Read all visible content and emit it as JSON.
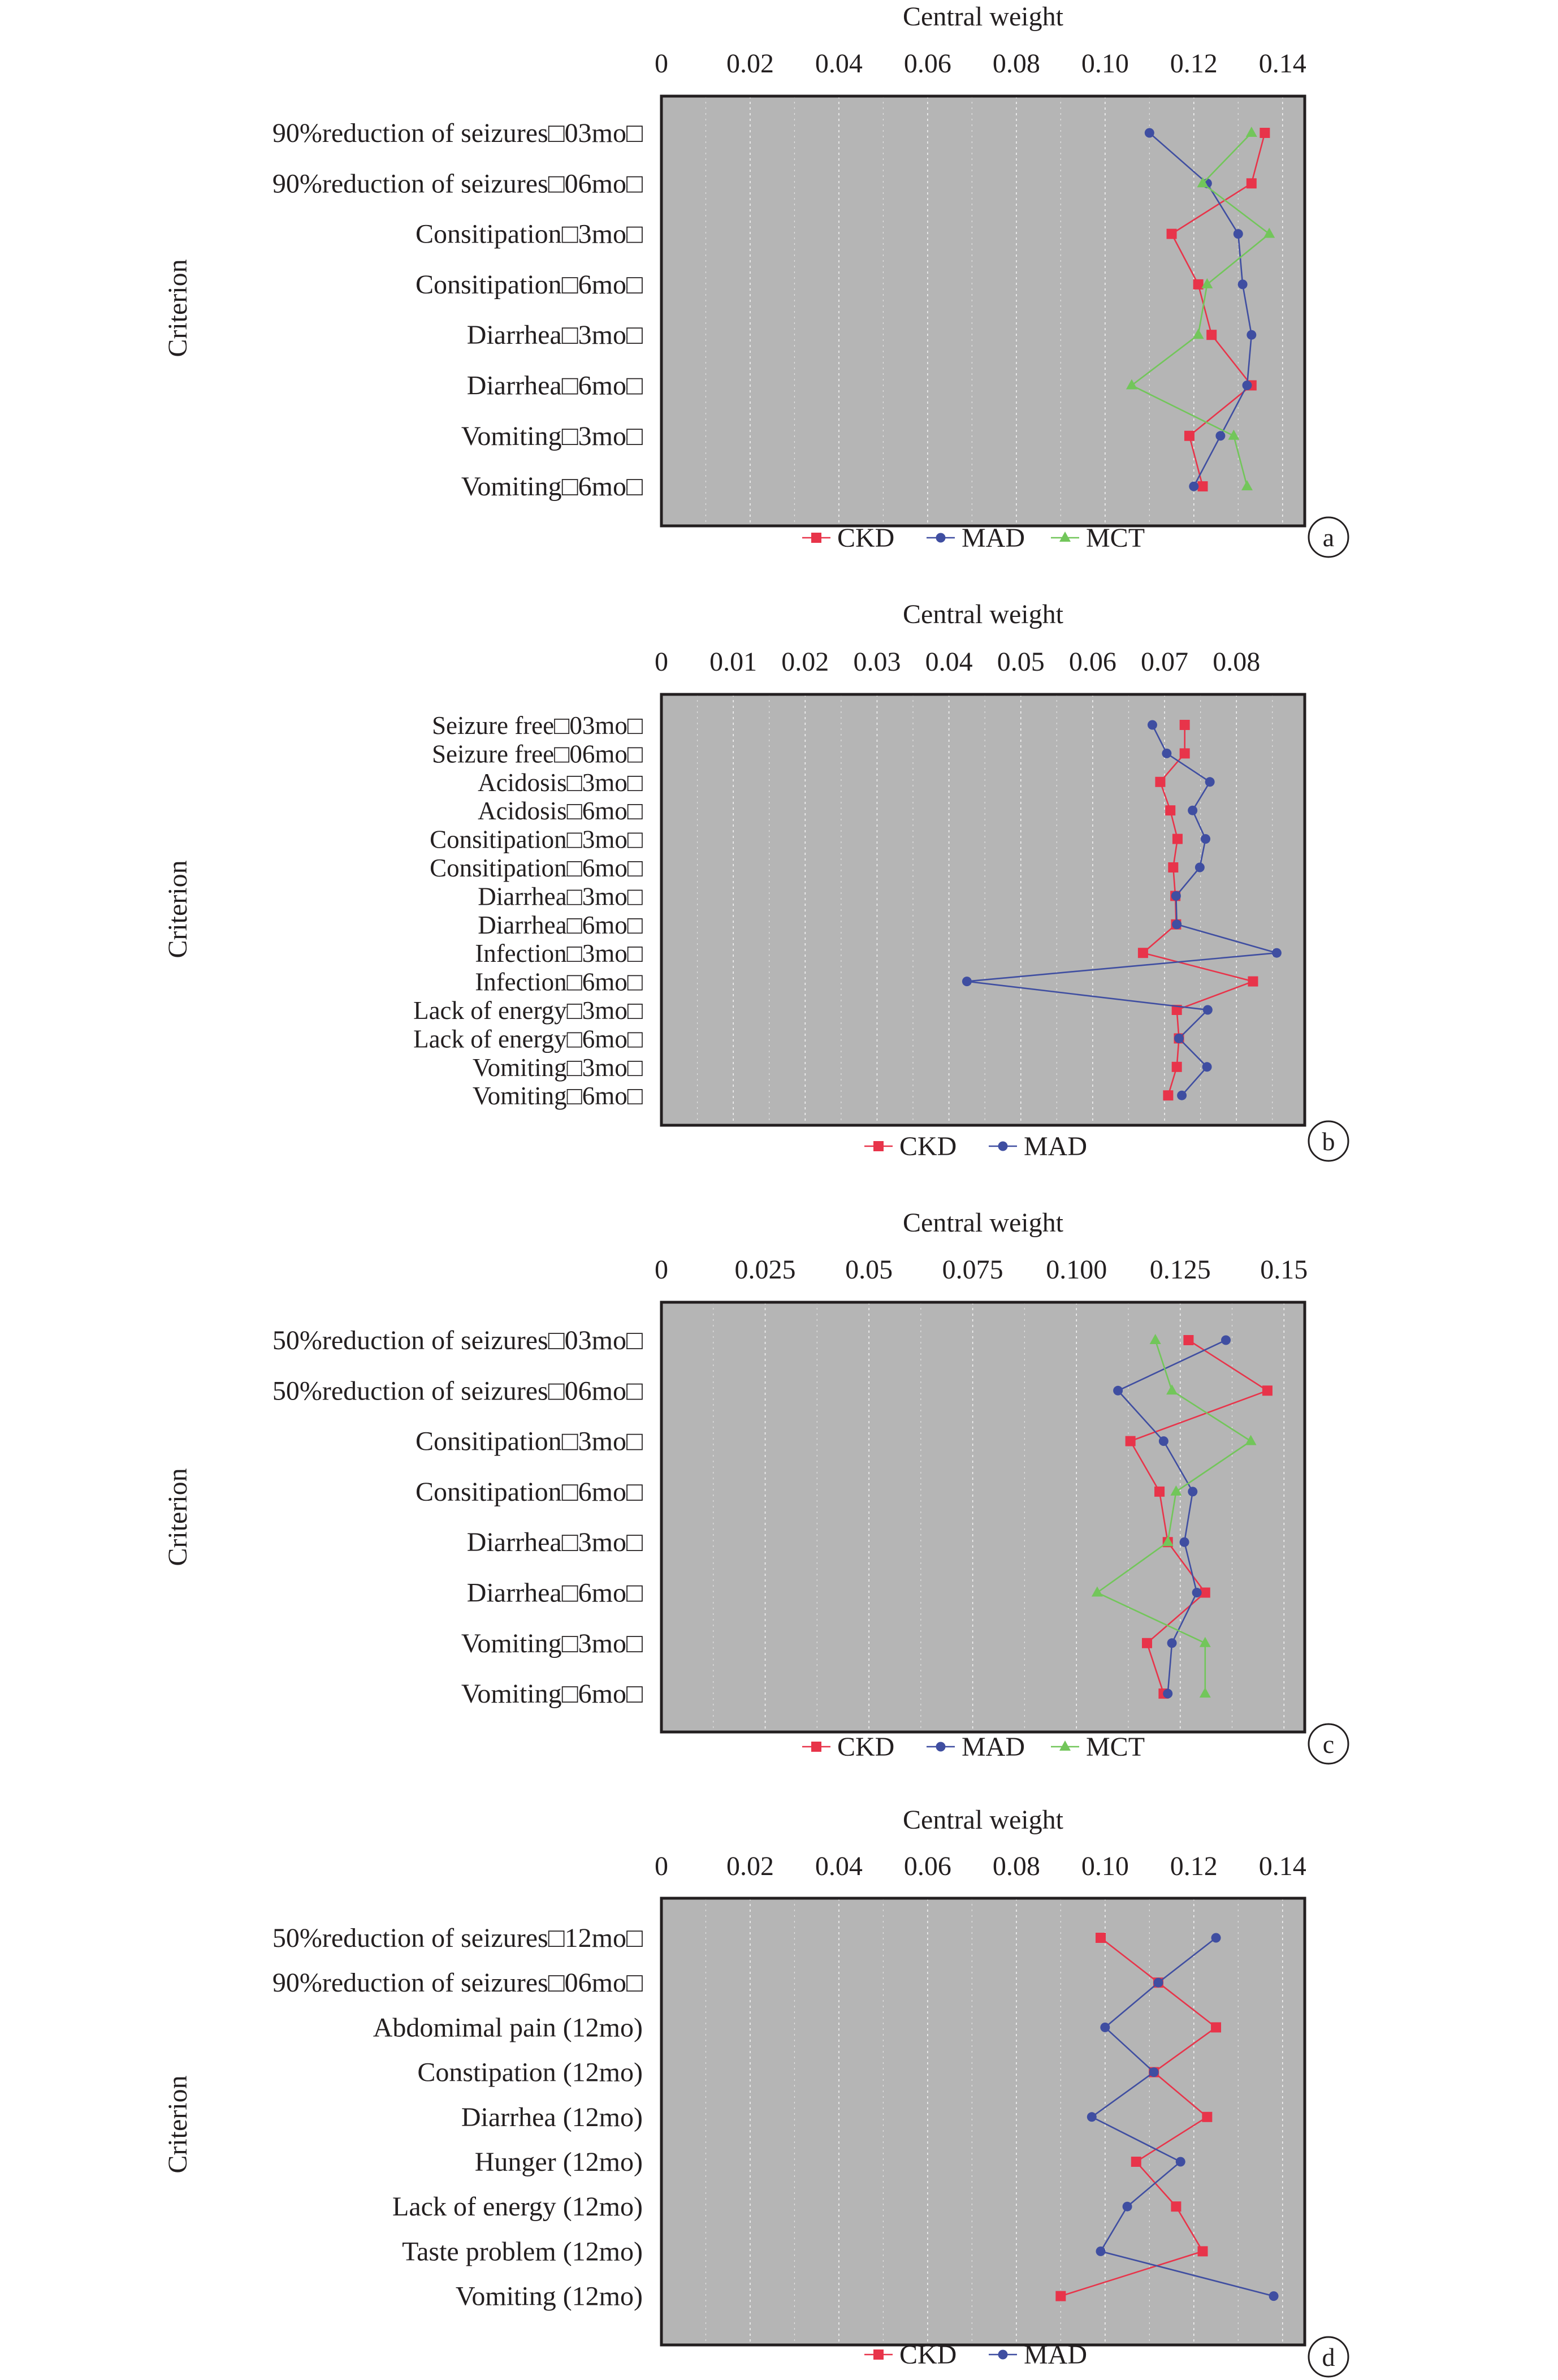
{
  "colors": {
    "plot_background": "#b5b5b5",
    "frame": "#231f20",
    "CKD": "#e8344a",
    "MAD": "#3f4ea1",
    "MCT": "#72c65a"
  },
  "marker_shapes": {
    "CKD": "square",
    "MAD": "circle",
    "MCT": "triangle"
  },
  "chart_data": [
    {
      "panel": "a",
      "type": "line",
      "orientation": "horizontal",
      "xlabel": "Central weight",
      "ylabel": "Criterion",
      "xlim": [
        0,
        0.145
      ],
      "xticks": [
        "0",
        "0.02",
        "0.04",
        "0.06",
        "0.08",
        "0.10",
        "0.12",
        "0.14"
      ],
      "xtick_values": [
        0,
        0.02,
        0.04,
        0.06,
        0.08,
        0.1,
        0.12,
        0.14
      ],
      "grid": "vertical dotted",
      "legend_position": "bottom-center",
      "categories": [
        "90%reduction of seizures□03mo□",
        "90%reduction of seizures□06mo□",
        "Consitipation□3mo□",
        "Consitipation□6mo□",
        "Diarrhea□3mo□",
        "Diarrhea□6mo□",
        "Vomiting□3mo□",
        "Vomiting□6mo□"
      ],
      "series": [
        {
          "name": "CKD",
          "values": [
            0.136,
            0.133,
            0.115,
            0.121,
            0.124,
            0.133,
            0.119,
            0.122
          ]
        },
        {
          "name": "MAD",
          "values": [
            0.11,
            0.123,
            0.13,
            0.131,
            0.133,
            0.132,
            0.126,
            0.12
          ]
        },
        {
          "name": "MCT",
          "values": [
            0.133,
            0.122,
            0.137,
            0.123,
            0.121,
            0.106,
            0.129,
            0.132
          ]
        }
      ]
    },
    {
      "panel": "b",
      "type": "line",
      "orientation": "horizontal",
      "xlabel": "Central weight",
      "ylabel": "Criterion",
      "xlim": [
        0,
        0.0895
      ],
      "xticks": [
        "0",
        "0.01",
        "0.02",
        "0.03",
        "0.04",
        "0.05",
        "0.06",
        "0.07",
        "0.08"
      ],
      "xtick_values": [
        0,
        0.01,
        0.02,
        0.03,
        0.04,
        0.05,
        0.06,
        0.07,
        0.08
      ],
      "grid": "vertical dotted",
      "legend_position": "bottom-center",
      "categories": [
        "Seizure free□03mo□",
        "Seizure free□06mo□",
        "Acidosis□3mo□",
        "Acidosis□6mo□",
        "Consitipation□3mo□",
        "Consitipation□6mo□",
        "Diarrhea□3mo□",
        "Diarrhea□6mo□",
        "Infection□3mo□",
        "Infection□6mo□",
        "Lack of energy□3mo□",
        "Lack of energy□6mo□",
        "Vomiting□3mo□",
        "Vomiting□6mo□"
      ],
      "series": [
        {
          "name": "CKD",
          "values": [
            0.0728,
            0.0728,
            0.0694,
            0.0708,
            0.0718,
            0.0712,
            0.0715,
            0.0716,
            0.067,
            0.0823,
            0.0717,
            0.072,
            0.0717,
            0.0705
          ]
        },
        {
          "name": "MAD",
          "values": [
            0.0683,
            0.0703,
            0.0763,
            0.0739,
            0.0757,
            0.0749,
            0.0716,
            0.0717,
            0.0856,
            0.0425,
            0.076,
            0.072,
            0.0759,
            0.0724
          ]
        }
      ]
    },
    {
      "panel": "c",
      "type": "line",
      "orientation": "horizontal",
      "xlabel": "Central weight",
      "ylabel": "Criterion",
      "xlim": [
        0,
        0.155
      ],
      "xticks": [
        "0",
        "0.025",
        "0.05",
        "0.075",
        "0.100",
        "0.125",
        "0.15"
      ],
      "xtick_values": [
        0,
        0.025,
        0.05,
        0.075,
        0.1,
        0.125,
        0.15
      ],
      "grid": "vertical dotted",
      "legend_position": "bottom-center",
      "categories": [
        "50%reduction of seizures□03mo□",
        "50%reduction of seizures□06mo□",
        "Consitipation□3mo□",
        "Consitipation□6mo□",
        "Diarrhea□3mo□",
        "Diarrhea□6mo□",
        "Vomiting□3mo□",
        "Vomiting□6mo□"
      ],
      "series": [
        {
          "name": "CKD",
          "values": [
            0.127,
            0.146,
            0.113,
            0.12,
            0.122,
            0.131,
            0.117,
            0.121
          ]
        },
        {
          "name": "MAD",
          "values": [
            0.136,
            0.11,
            0.121,
            0.128,
            0.126,
            0.129,
            0.123,
            0.122
          ]
        },
        {
          "name": "MCT",
          "values": [
            0.119,
            0.123,
            0.142,
            0.124,
            0.122,
            0.105,
            0.131,
            0.131
          ]
        }
      ]
    },
    {
      "panel": "d",
      "type": "line",
      "orientation": "horizontal",
      "xlabel": "Central weight",
      "ylabel": "Criterion",
      "xlim": [
        0,
        0.145
      ],
      "xticks": [
        "0",
        "0.02",
        "0.04",
        "0.06",
        "0.08",
        "0.10",
        "0.12",
        "0.14"
      ],
      "xtick_values": [
        0,
        0.02,
        0.04,
        0.06,
        0.08,
        0.1,
        0.12,
        0.14
      ],
      "grid": "vertical dotted",
      "legend_position": "bottom-center",
      "categories": [
        "50%reduction of seizures□12mo□",
        "90%reduction of seizures□06mo□",
        "Abdomimal pain (12mo)",
        "Constipation (12mo)",
        "Diarrhea (12mo)",
        "Hunger (12mo)",
        "Lack of energy (12mo)",
        "Taste problem (12mo)",
        "Vomiting (12mo)"
      ],
      "series": [
        {
          "name": "CKD",
          "values": [
            0.099,
            0.112,
            0.125,
            0.111,
            0.123,
            0.107,
            0.116,
            0.122,
            0.09
          ]
        },
        {
          "name": "MAD",
          "values": [
            0.125,
            0.112,
            0.1,
            0.111,
            0.097,
            0.117,
            0.105,
            0.099,
            0.138
          ]
        }
      ]
    }
  ]
}
